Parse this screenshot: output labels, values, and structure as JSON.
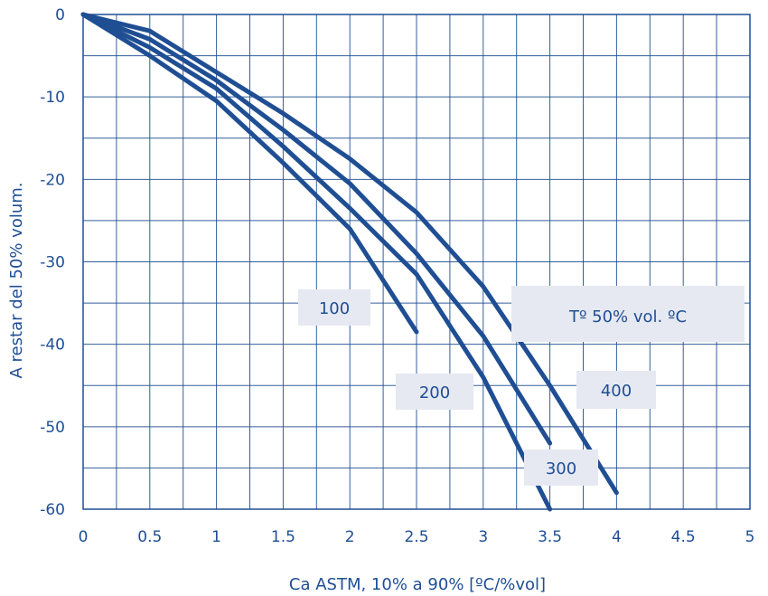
{
  "chart_data": {
    "type": "line",
    "title": "",
    "xlabel": "Ca ASTM, 10% a 90% [ºC/%vol]",
    "ylabel": "A restar del 50% volum.",
    "xlim": [
      0,
      5
    ],
    "ylim": [
      -60,
      0
    ],
    "x_ticks": [
      0,
      0.5,
      1,
      1.5,
      2,
      2.5,
      3,
      3.5,
      4,
      4.5,
      5
    ],
    "x_tick_labels": [
      "0",
      "0.5",
      "1",
      "1.5",
      "2",
      "2.5",
      "3",
      "3.5",
      "4",
      "4.5",
      "5"
    ],
    "y_ticks": [
      0,
      -10,
      -20,
      -30,
      -40,
      -50,
      -60
    ],
    "y_tick_labels": [
      "0",
      "-10",
      "-20",
      "-30",
      "-40",
      "-50",
      "-60"
    ],
    "grid": true,
    "legend_title": "Tº 50% vol. ºC",
    "series": [
      {
        "name": "100",
        "x": [
          0,
          0.5,
          1,
          1.5,
          2,
          2.5
        ],
        "y": [
          0,
          -5,
          -10.5,
          -18,
          -26,
          -38.5
        ]
      },
      {
        "name": "200",
        "x": [
          0,
          0.5,
          1,
          1.5,
          2,
          2.5,
          3,
          3.5
        ],
        "y": [
          0,
          -4,
          -9,
          -16,
          -23.5,
          -31.5,
          -44,
          -60
        ]
      },
      {
        "name": "300",
        "x": [
          0,
          0.5,
          1,
          1.5,
          2,
          2.5,
          3,
          3.5
        ],
        "y": [
          0,
          -3,
          -8,
          -14,
          -20.5,
          -29,
          -39,
          -52
        ]
      },
      {
        "name": "400",
        "x": [
          0,
          0.5,
          1,
          1.5,
          2,
          2.5,
          3,
          3.5,
          4
        ],
        "y": [
          0,
          -2,
          -7,
          -12,
          -17.5,
          -24,
          -33,
          -45,
          -58
        ]
      }
    ]
  }
}
